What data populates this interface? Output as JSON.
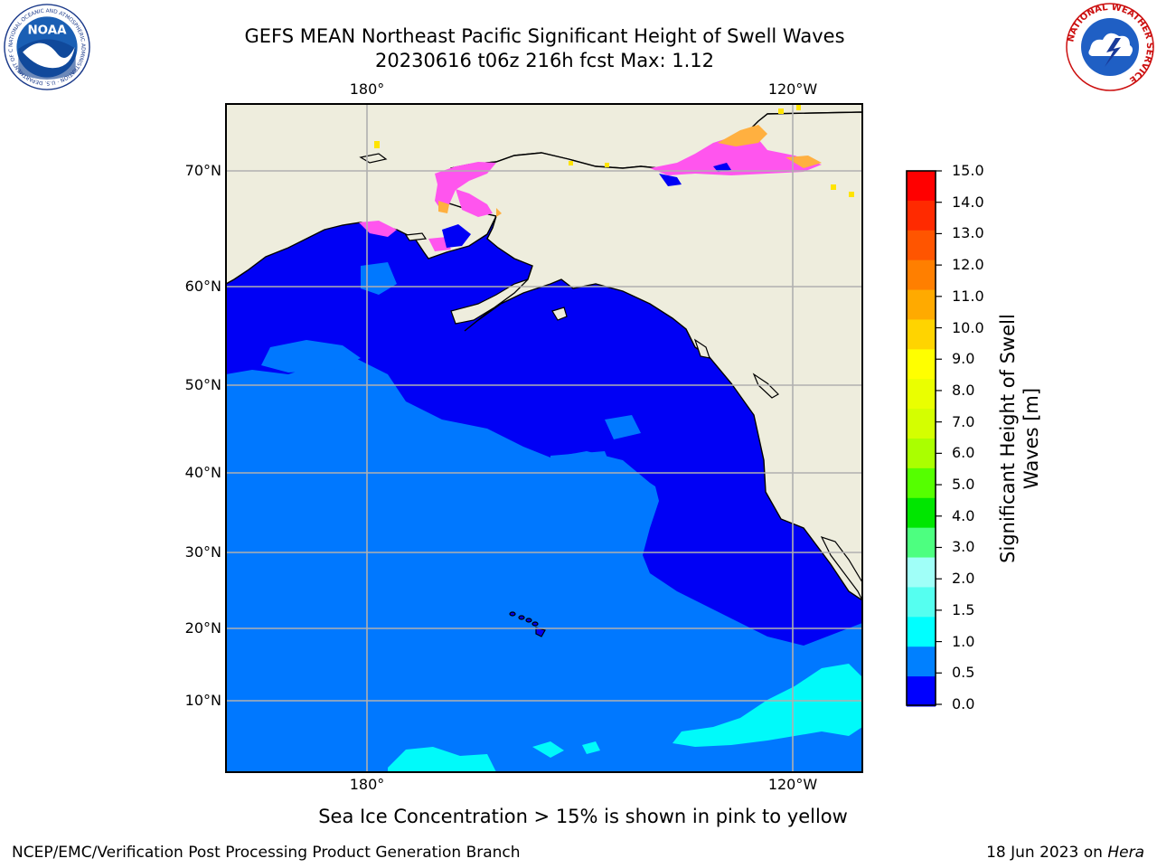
{
  "title": {
    "line1": "GEFS MEAN Northeast Pacific Significant Height of Swell Waves",
    "line2": "20230616 t06z 216h fcst   Max: 1.12"
  },
  "map": {
    "lon_ticks_top": [
      "180°",
      "120°W"
    ],
    "lon_ticks_bottom": [
      "180°",
      "120°W"
    ],
    "lat_ticks": [
      "70°N",
      "60°N",
      "50°N",
      "40°N",
      "30°N",
      "20°N",
      "10°N"
    ],
    "colors": {
      "land": "#eeeddd",
      "ocean_low": "#0000f5",
      "ocean_mid": "#0078ff",
      "ocean_high": "#00fafa",
      "ice_pink": "#ff55ee",
      "ice_orange": "#ffb040",
      "ice_yellow": "#ffe400",
      "grid": "#b0b0b0"
    }
  },
  "colorbar": {
    "title_line1": "Significant Height of Swell",
    "title_line2": "Waves [m]",
    "labels": [
      "15.0",
      "14.0",
      "13.0",
      "12.0",
      "11.0",
      "10.0",
      "9.0",
      "8.0",
      "7.0",
      "6.0",
      "5.0",
      "4.0",
      "3.0",
      "2.0",
      "1.5",
      "1.0",
      "0.5",
      "0.0"
    ],
    "colors_top_to_bottom": [
      "#ff0000",
      "#ff2a00",
      "#ff5500",
      "#ff7f00",
      "#ffaa00",
      "#ffd400",
      "#ffff00",
      "#eaff00",
      "#d4ff00",
      "#aaff00",
      "#55ff00",
      "#00e600",
      "#4dff80",
      "#a0fff8",
      "#55fff0",
      "#00ffff",
      "#0080ff",
      "#0000ff"
    ]
  },
  "note": "Sea Ice Concentration > 15% is shown in pink to yellow",
  "footer": {
    "left": "NCEP/EMC/Verification Post Processing Product Generation Branch",
    "right_prefix": "18 Jun 2023 on ",
    "right_machine": "Hera"
  },
  "logos": {
    "noaa": "NOAA",
    "noaa_ring": "NATIONAL OCEANIC AND ATMOSPHERIC ADMINISTRATION · U.S. DEPARTMENT OF COMMERCE",
    "nws_ring": "NATIONAL WEATHER SERVICE"
  }
}
